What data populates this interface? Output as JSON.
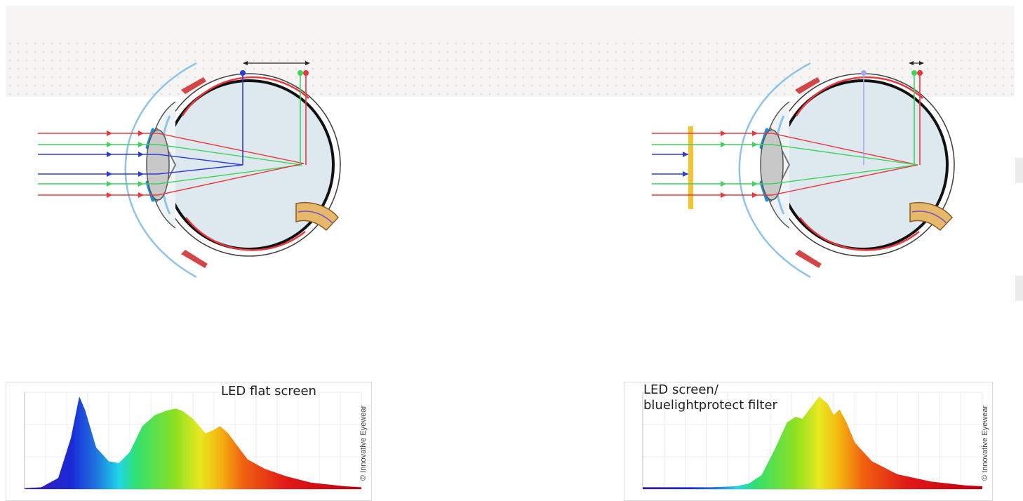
{
  "colors": {
    "ray_red": "#e8383d",
    "ray_green": "#3fd35a",
    "ray_blue": "#2f3bd6",
    "ray_faded_blue": "#a6a9f0",
    "eye_fill": "#dde9ef",
    "cornea": "#8fc3ea",
    "filter": "#f4c430"
  },
  "panels": [
    {
      "id": "without-filter",
      "blue_focus": "in front of retina",
      "rays": [
        "red",
        "green",
        "blue",
        "blue",
        "green",
        "red"
      ],
      "spectrum": {
        "title": "LED flat screen",
        "watermark": "© Innovative Eyewear",
        "curve": [
          [
            380,
            0.01
          ],
          [
            400,
            0.02
          ],
          [
            420,
            0.12
          ],
          [
            435,
            0.55
          ],
          [
            445,
            1.0
          ],
          [
            452,
            0.85
          ],
          [
            465,
            0.45
          ],
          [
            480,
            0.3
          ],
          [
            492,
            0.28
          ],
          [
            505,
            0.4
          ],
          [
            520,
            0.68
          ],
          [
            535,
            0.8
          ],
          [
            550,
            0.85
          ],
          [
            560,
            0.87
          ],
          [
            568,
            0.84
          ],
          [
            580,
            0.76
          ],
          [
            595,
            0.6
          ],
          [
            605,
            0.64
          ],
          [
            612,
            0.68
          ],
          [
            622,
            0.6
          ],
          [
            630,
            0.5
          ],
          [
            645,
            0.32
          ],
          [
            665,
            0.22
          ],
          [
            690,
            0.14
          ],
          [
            720,
            0.07
          ],
          [
            760,
            0.03
          ],
          [
            780,
            0.02
          ]
        ]
      }
    },
    {
      "id": "with-filter",
      "blue_focus": "blocked by filter",
      "rays": [
        "red",
        "green",
        "blue",
        "blue",
        "green",
        "red"
      ],
      "spectrum": {
        "title": "LED screen/\nbluelightprotect filter",
        "watermark": "© Innovative Eyewear",
        "curve": [
          [
            380,
            0.02
          ],
          [
            420,
            0.02
          ],
          [
            460,
            0.02
          ],
          [
            490,
            0.03
          ],
          [
            505,
            0.06
          ],
          [
            520,
            0.15
          ],
          [
            535,
            0.42
          ],
          [
            550,
            0.72
          ],
          [
            560,
            0.78
          ],
          [
            568,
            0.76
          ],
          [
            578,
            0.88
          ],
          [
            588,
            1.0
          ],
          [
            598,
            0.92
          ],
          [
            605,
            0.8
          ],
          [
            612,
            0.86
          ],
          [
            620,
            0.72
          ],
          [
            630,
            0.5
          ],
          [
            650,
            0.3
          ],
          [
            680,
            0.16
          ],
          [
            720,
            0.08
          ],
          [
            760,
            0.04
          ],
          [
            780,
            0.03
          ]
        ]
      }
    }
  ]
}
